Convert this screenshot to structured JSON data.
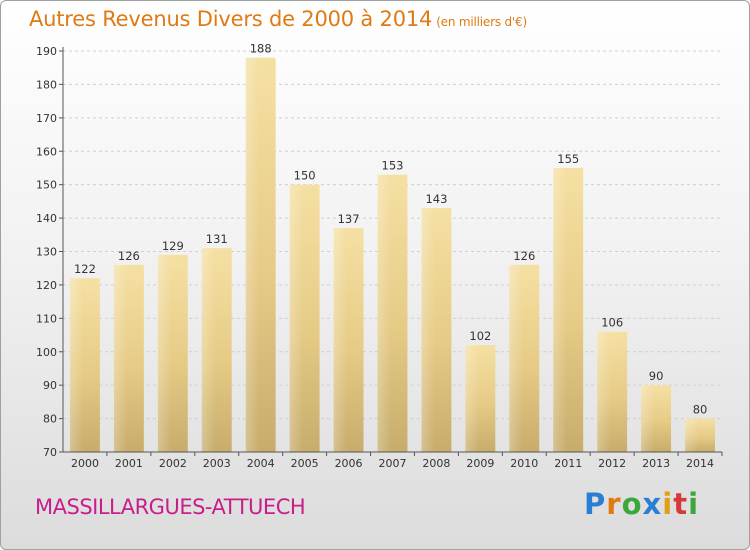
{
  "title": "Autres Revenus Divers de 2000 à 2014",
  "subtitle": "(en milliers d'€)",
  "commune": "MASSILLARGUES-ATTUECH",
  "logo": {
    "letters": [
      "P",
      "r",
      "o",
      "x",
      "i",
      "t",
      "i"
    ],
    "colors": [
      "#2a7fd4",
      "#e07a14",
      "#3aa83a",
      "#2a7fd4",
      "#e0a014",
      "#d43a3a",
      "#3aa83a"
    ]
  },
  "colors": {
    "title": "#e07a14",
    "commune": "#c81e8c",
    "bar_light": "#f3dc9c",
    "bar_dark": "#c7ac6c"
  },
  "chart_data": {
    "type": "bar",
    "title": "Autres Revenus Divers de 2000 à 2014",
    "subtitle": "(en milliers d'€)",
    "categories": [
      "2000",
      "2001",
      "2002",
      "2003",
      "2004",
      "2005",
      "2006",
      "2007",
      "2008",
      "2009",
      "2010",
      "2011",
      "2012",
      "2013",
      "2014"
    ],
    "values": [
      122,
      126,
      129,
      131,
      188,
      150,
      137,
      153,
      143,
      102,
      126,
      155,
      106,
      90,
      80
    ],
    "ylim": [
      70,
      190
    ],
    "yticks": [
      70,
      80,
      90,
      100,
      110,
      120,
      130,
      140,
      150,
      160,
      170,
      180,
      190
    ],
    "grid": true
  }
}
